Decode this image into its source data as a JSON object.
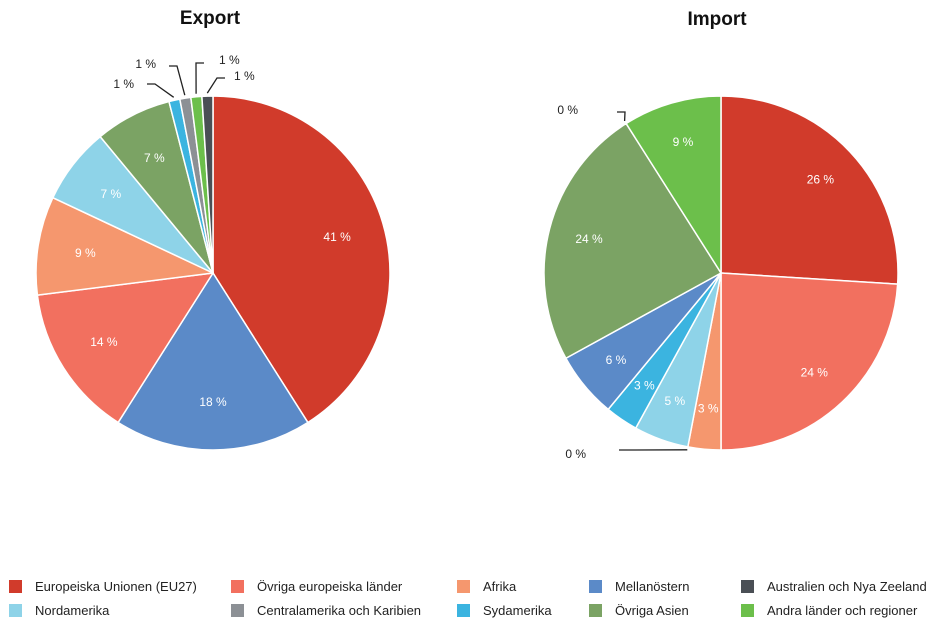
{
  "colors": {
    "eu27": "#d13b2b",
    "ovriga_europa": "#f2705f",
    "afrika": "#f5976e",
    "mellanostern": "#5b8ac8",
    "australien": "#4a4f55",
    "nordamerika": "#8ed3e8",
    "centralamerika": "#8c9095",
    "sydamerika": "#3bb4e0",
    "ovriga_asien": "#7ba364",
    "andra": "#6cbf4b"
  },
  "legend": [
    {
      "key": "eu27",
      "label": "Europeiska Unionen (EU27)"
    },
    {
      "key": "ovriga_europa",
      "label": "Övriga europeiska länder"
    },
    {
      "key": "afrika",
      "label": "Afrika"
    },
    {
      "key": "mellanostern",
      "label": "Mellanöstern"
    },
    {
      "key": "australien",
      "label": "Australien och Nya Zeeland"
    },
    {
      "key": "nordamerika",
      "label": "Nordamerika"
    },
    {
      "key": "centralamerika",
      "label": "Centralamerika och Karibien"
    },
    {
      "key": "sydamerika",
      "label": "Sydamerika"
    },
    {
      "key": "ovriga_asien",
      "label": "Övriga Asien"
    },
    {
      "key": "andra",
      "label": "Andra länder och regioner"
    }
  ],
  "chart_data": [
    {
      "type": "pie",
      "title": "Export",
      "slices": [
        {
          "key": "eu27",
          "value": 41,
          "label": "41 %"
        },
        {
          "key": "mellanostern",
          "value": 18,
          "label": "18 %"
        },
        {
          "key": "ovriga_europa",
          "value": 14,
          "label": "14 %"
        },
        {
          "key": "afrika",
          "value": 9,
          "label": "9 %"
        },
        {
          "key": "nordamerika",
          "value": 7,
          "label": "7 %"
        },
        {
          "key": "ovriga_asien",
          "value": 7,
          "label": "7 %"
        },
        {
          "key": "sydamerika",
          "value": 1,
          "label": "1 %"
        },
        {
          "key": "centralamerika",
          "value": 1,
          "label": "1 %"
        },
        {
          "key": "andra",
          "value": 1,
          "label": "1 %"
        },
        {
          "key": "australien",
          "value": 1,
          "label": "1 %"
        }
      ]
    },
    {
      "type": "pie",
      "title": "Import",
      "slices": [
        {
          "key": "eu27",
          "value": 26,
          "label": "26 %"
        },
        {
          "key": "ovriga_europa",
          "value": 24,
          "label": "24 %"
        },
        {
          "key": "afrika",
          "value": 3,
          "label": "3 %"
        },
        {
          "key": "centralamerika",
          "value": 0,
          "label": "0 %"
        },
        {
          "key": "nordamerika",
          "value": 5,
          "label": "5 %"
        },
        {
          "key": "sydamerika",
          "value": 3,
          "label": "3 %"
        },
        {
          "key": "mellanostern",
          "value": 6,
          "label": "6 %"
        },
        {
          "key": "ovriga_asien",
          "value": 24,
          "label": "24 %"
        },
        {
          "key": "australien",
          "value": 0,
          "label": "0 %"
        },
        {
          "key": "andra",
          "value": 9,
          "label": "9 %"
        }
      ]
    }
  ]
}
